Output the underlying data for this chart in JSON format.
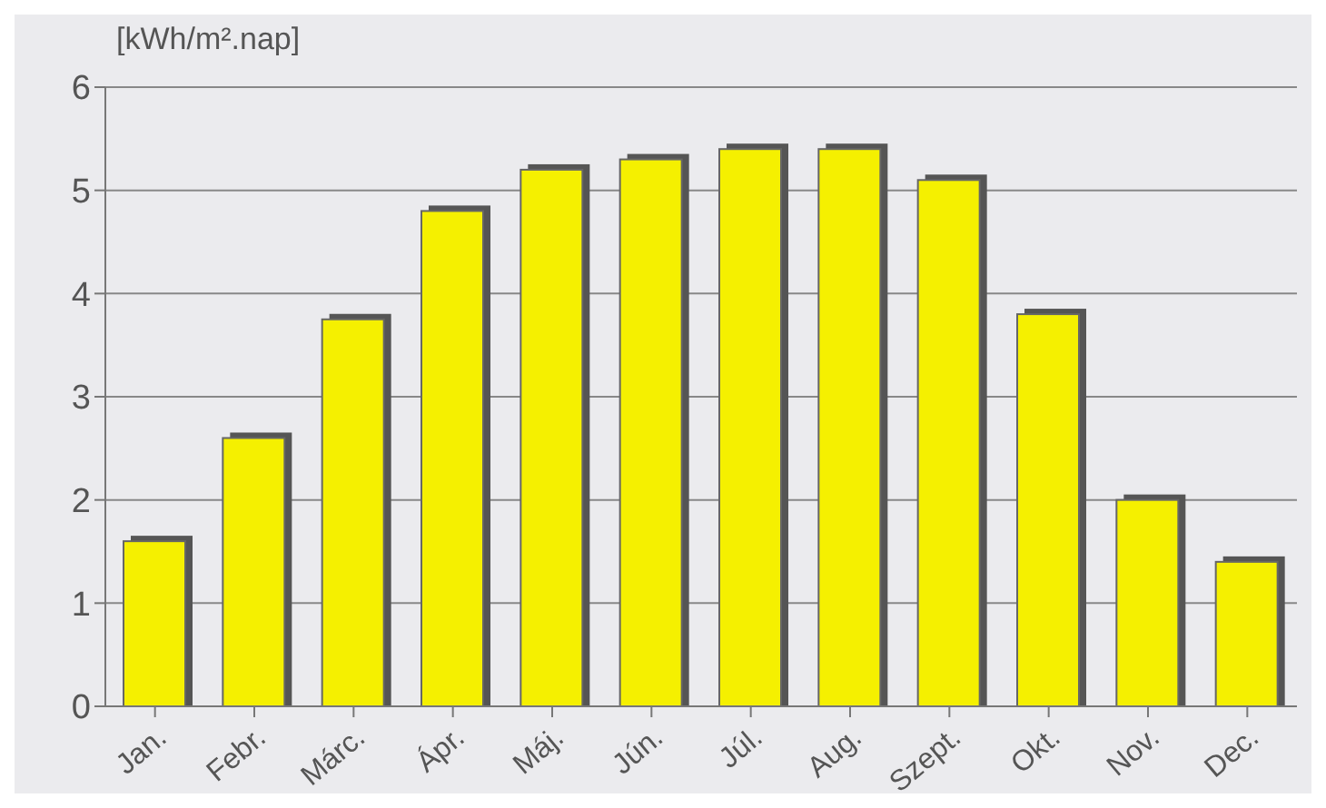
{
  "chart_data": {
    "type": "bar",
    "ylabel": "[kWh/m².nap]",
    "categories": [
      "Jan.",
      "Febr.",
      "Márc.",
      "Ápr.",
      "Máj.",
      "Jún.",
      "Júl.",
      "Aug.",
      "Szept.",
      "Okt.",
      "Nov.",
      "Dec."
    ],
    "values": [
      1.6,
      2.6,
      3.75,
      4.8,
      5.2,
      5.3,
      5.4,
      5.4,
      5.1,
      3.8,
      2.0,
      1.4
    ],
    "color": "#f5f000",
    "ylim": [
      0,
      6
    ],
    "yticks": [
      0,
      1,
      2,
      3,
      4,
      5,
      6
    ],
    "grid": "y"
  }
}
